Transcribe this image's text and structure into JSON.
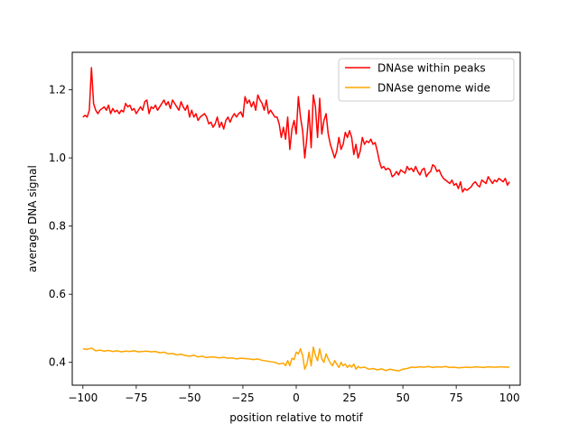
{
  "chart_data": {
    "type": "line",
    "title": "",
    "xlabel": "position relative to motif",
    "ylabel": "average DNA signal",
    "xlim": [
      -105,
      105
    ],
    "ylim": [
      0.333,
      1.31
    ],
    "xticks": [
      -100,
      -75,
      -50,
      -25,
      0,
      25,
      50,
      75,
      100
    ],
    "yticks": [
      0.4,
      0.6,
      0.8,
      1.0,
      1.2
    ],
    "xtick_labels": [
      "−100",
      "−75",
      "−50",
      "−25",
      "0",
      "25",
      "50",
      "75",
      "100"
    ],
    "ytick_labels": [
      "0.4",
      "0.6",
      "0.8",
      "1.0",
      "1.2"
    ],
    "grid": false,
    "legend_position": "top-right",
    "series": [
      {
        "name": "DNAse within peaks",
        "color": "#ff0000",
        "points": [
          [
            -100,
            1.12
          ],
          [
            -99,
            1.125
          ],
          [
            -98,
            1.12
          ],
          [
            -97,
            1.14
          ],
          [
            -96,
            1.265
          ],
          [
            -95,
            1.16
          ],
          [
            -94,
            1.14
          ],
          [
            -93,
            1.13
          ],
          [
            -92,
            1.14
          ],
          [
            -91,
            1.145
          ],
          [
            -90,
            1.15
          ],
          [
            -89,
            1.14
          ],
          [
            -88,
            1.155
          ],
          [
            -87,
            1.13
          ],
          [
            -86,
            1.145
          ],
          [
            -85,
            1.135
          ],
          [
            -84,
            1.14
          ],
          [
            -83,
            1.13
          ],
          [
            -82,
            1.14
          ],
          [
            -81,
            1.135
          ],
          [
            -80,
            1.16
          ],
          [
            -79,
            1.15
          ],
          [
            -78,
            1.155
          ],
          [
            -77,
            1.14
          ],
          [
            -76,
            1.145
          ],
          [
            -75,
            1.13
          ],
          [
            -74,
            1.14
          ],
          [
            -73,
            1.15
          ],
          [
            -72,
            1.14
          ],
          [
            -71,
            1.165
          ],
          [
            -70,
            1.17
          ],
          [
            -69,
            1.13
          ],
          [
            -68,
            1.15
          ],
          [
            -67,
            1.145
          ],
          [
            -66,
            1.155
          ],
          [
            -65,
            1.14
          ],
          [
            -64,
            1.15
          ],
          [
            -63,
            1.16
          ],
          [
            -62,
            1.17
          ],
          [
            -61,
            1.155
          ],
          [
            -60,
            1.165
          ],
          [
            -59,
            1.145
          ],
          [
            -58,
            1.17
          ],
          [
            -57,
            1.16
          ],
          [
            -56,
            1.15
          ],
          [
            -55,
            1.14
          ],
          [
            -54,
            1.165
          ],
          [
            -53,
            1.15
          ],
          [
            -52,
            1.14
          ],
          [
            -51,
            1.155
          ],
          [
            -50,
            1.12
          ],
          [
            -49,
            1.14
          ],
          [
            -48,
            1.12
          ],
          [
            -47,
            1.13
          ],
          [
            -46,
            1.11
          ],
          [
            -45,
            1.12
          ],
          [
            -44,
            1.125
          ],
          [
            -43,
            1.13
          ],
          [
            -42,
            1.12
          ],
          [
            -41,
            1.1
          ],
          [
            -40,
            1.105
          ],
          [
            -39,
            1.09
          ],
          [
            -38,
            1.1
          ],
          [
            -37,
            1.12
          ],
          [
            -36,
            1.09
          ],
          [
            -35,
            1.105
          ],
          [
            -34,
            1.085
          ],
          [
            -33,
            1.11
          ],
          [
            -32,
            1.12
          ],
          [
            -31,
            1.105
          ],
          [
            -30,
            1.12
          ],
          [
            -29,
            1.13
          ],
          [
            -28,
            1.12
          ],
          [
            -27,
            1.13
          ],
          [
            -26,
            1.135
          ],
          [
            -25,
            1.12
          ],
          [
            -24,
            1.18
          ],
          [
            -23,
            1.16
          ],
          [
            -22,
            1.17
          ],
          [
            -21,
            1.15
          ],
          [
            -20,
            1.165
          ],
          [
            -19,
            1.14
          ],
          [
            -18,
            1.185
          ],
          [
            -17,
            1.17
          ],
          [
            -16,
            1.16
          ],
          [
            -15,
            1.14
          ],
          [
            -14,
            1.17
          ],
          [
            -13,
            1.13
          ],
          [
            -12,
            1.14
          ],
          [
            -11,
            1.13
          ],
          [
            -10,
            1.12
          ],
          [
            -9,
            1.12
          ],
          [
            -8,
            1.1
          ],
          [
            -7,
            1.06
          ],
          [
            -6,
            1.09
          ],
          [
            -5,
            1.055
          ],
          [
            -4,
            1.12
          ],
          [
            -3,
            1.025
          ],
          [
            -2,
            1.085
          ],
          [
            -1,
            1.11
          ],
          [
            0,
            1.07
          ],
          [
            1,
            1.18
          ],
          [
            2,
            1.12
          ],
          [
            3,
            1.08
          ],
          [
            4,
            1.0
          ],
          [
            5,
            1.06
          ],
          [
            6,
            1.14
          ],
          [
            7,
            1.03
          ],
          [
            8,
            1.185
          ],
          [
            9,
            1.15
          ],
          [
            10,
            1.06
          ],
          [
            11,
            1.175
          ],
          [
            12,
            1.07
          ],
          [
            13,
            1.11
          ],
          [
            14,
            1.13
          ],
          [
            15,
            1.07
          ],
          [
            16,
            1.04
          ],
          [
            17,
            1.02
          ],
          [
            18,
            1.0
          ],
          [
            19,
            1.02
          ],
          [
            20,
            1.06
          ],
          [
            21,
            1.025
          ],
          [
            22,
            1.04
          ],
          [
            23,
            1.075
          ],
          [
            24,
            1.06
          ],
          [
            25,
            1.08
          ],
          [
            26,
            1.06
          ],
          [
            27,
            1.01
          ],
          [
            28,
            1.04
          ],
          [
            29,
            1.0
          ],
          [
            30,
            1.02
          ],
          [
            31,
            1.06
          ],
          [
            32,
            1.04
          ],
          [
            33,
            1.05
          ],
          [
            34,
            1.045
          ],
          [
            35,
            1.055
          ],
          [
            36,
            1.04
          ],
          [
            37,
            1.045
          ],
          [
            38,
            1.02
          ],
          [
            39,
            0.99
          ],
          [
            40,
            0.97
          ],
          [
            41,
            0.975
          ],
          [
            42,
            0.965
          ],
          [
            43,
            0.97
          ],
          [
            44,
            0.965
          ],
          [
            45,
            0.945
          ],
          [
            46,
            0.95
          ],
          [
            47,
            0.96
          ],
          [
            48,
            0.95
          ],
          [
            49,
            0.965
          ],
          [
            50,
            0.96
          ],
          [
            51,
            0.955
          ],
          [
            52,
            0.975
          ],
          [
            53,
            0.965
          ],
          [
            54,
            0.97
          ],
          [
            55,
            0.96
          ],
          [
            56,
            0.975
          ],
          [
            57,
            0.96
          ],
          [
            58,
            0.95
          ],
          [
            59,
            0.965
          ],
          [
            60,
            0.97
          ],
          [
            61,
            0.945
          ],
          [
            62,
            0.955
          ],
          [
            63,
            0.96
          ],
          [
            64,
            0.98
          ],
          [
            65,
            0.975
          ],
          [
            66,
            0.96
          ],
          [
            67,
            0.965
          ],
          [
            68,
            0.95
          ],
          [
            69,
            0.94
          ],
          [
            70,
            0.935
          ],
          [
            71,
            0.93
          ],
          [
            72,
            0.925
          ],
          [
            73,
            0.935
          ],
          [
            74,
            0.92
          ],
          [
            75,
            0.925
          ],
          [
            76,
            0.91
          ],
          [
            77,
            0.93
          ],
          [
            78,
            0.9
          ],
          [
            79,
            0.91
          ],
          [
            80,
            0.905
          ],
          [
            81,
            0.91
          ],
          [
            82,
            0.915
          ],
          [
            83,
            0.925
          ],
          [
            84,
            0.93
          ],
          [
            85,
            0.92
          ],
          [
            86,
            0.915
          ],
          [
            87,
            0.935
          ],
          [
            88,
            0.93
          ],
          [
            89,
            0.925
          ],
          [
            90,
            0.945
          ],
          [
            91,
            0.935
          ],
          [
            92,
            0.925
          ],
          [
            93,
            0.935
          ],
          [
            94,
            0.93
          ],
          [
            95,
            0.94
          ],
          [
            96,
            0.935
          ],
          [
            97,
            0.93
          ],
          [
            98,
            0.94
          ],
          [
            99,
            0.92
          ],
          [
            100,
            0.93
          ]
        ]
      },
      {
        "name": "DNAse genome wide",
        "color": "#ffa500",
        "points": [
          [
            -100,
            0.44
          ],
          [
            -98,
            0.438
          ],
          [
            -96,
            0.442
          ],
          [
            -94,
            0.434
          ],
          [
            -92,
            0.436
          ],
          [
            -90,
            0.433
          ],
          [
            -88,
            0.435
          ],
          [
            -86,
            0.432
          ],
          [
            -84,
            0.434
          ],
          [
            -82,
            0.431
          ],
          [
            -80,
            0.433
          ],
          [
            -78,
            0.432
          ],
          [
            -76,
            0.434
          ],
          [
            -74,
            0.431
          ],
          [
            -72,
            0.432
          ],
          [
            -70,
            0.433
          ],
          [
            -68,
            0.431
          ],
          [
            -66,
            0.432
          ],
          [
            -64,
            0.428
          ],
          [
            -62,
            0.43
          ],
          [
            -60,
            0.425
          ],
          [
            -58,
            0.426
          ],
          [
            -56,
            0.422
          ],
          [
            -54,
            0.424
          ],
          [
            -52,
            0.42
          ],
          [
            -50,
            0.418
          ],
          [
            -48,
            0.421
          ],
          [
            -46,
            0.416
          ],
          [
            -44,
            0.418
          ],
          [
            -42,
            0.414
          ],
          [
            -40,
            0.416
          ],
          [
            -38,
            0.415
          ],
          [
            -36,
            0.413
          ],
          [
            -34,
            0.415
          ],
          [
            -32,
            0.412
          ],
          [
            -30,
            0.413
          ],
          [
            -28,
            0.41
          ],
          [
            -26,
            0.412
          ],
          [
            -24,
            0.411
          ],
          [
            -22,
            0.41
          ],
          [
            -20,
            0.408
          ],
          [
            -18,
            0.41
          ],
          [
            -16,
            0.406
          ],
          [
            -14,
            0.404
          ],
          [
            -12,
            0.402
          ],
          [
            -10,
            0.4
          ],
          [
            -8,
            0.395
          ],
          [
            -6,
            0.398
          ],
          [
            -5,
            0.39
          ],
          [
            -4,
            0.405
          ],
          [
            -3,
            0.39
          ],
          [
            -2,
            0.412
          ],
          [
            -1,
            0.408
          ],
          [
            0,
            0.43
          ],
          [
            1,
            0.425
          ],
          [
            2,
            0.44
          ],
          [
            3,
            0.42
          ],
          [
            4,
            0.38
          ],
          [
            5,
            0.395
          ],
          [
            6,
            0.43
          ],
          [
            7,
            0.39
          ],
          [
            8,
            0.445
          ],
          [
            9,
            0.42
          ],
          [
            10,
            0.405
          ],
          [
            11,
            0.44
          ],
          [
            12,
            0.41
          ],
          [
            13,
            0.4
          ],
          [
            14,
            0.425
          ],
          [
            15,
            0.41
          ],
          [
            16,
            0.398
          ],
          [
            17,
            0.39
          ],
          [
            18,
            0.405
          ],
          [
            19,
            0.395
          ],
          [
            20,
            0.385
          ],
          [
            21,
            0.4
          ],
          [
            22,
            0.39
          ],
          [
            23,
            0.395
          ],
          [
            24,
            0.385
          ],
          [
            25,
            0.392
          ],
          [
            26,
            0.386
          ],
          [
            27,
            0.395
          ],
          [
            28,
            0.38
          ],
          [
            29,
            0.388
          ],
          [
            30,
            0.384
          ],
          [
            32,
            0.386
          ],
          [
            34,
            0.38
          ],
          [
            36,
            0.382
          ],
          [
            38,
            0.378
          ],
          [
            40,
            0.381
          ],
          [
            42,
            0.376
          ],
          [
            44,
            0.38
          ],
          [
            46,
            0.377
          ],
          [
            48,
            0.375
          ],
          [
            50,
            0.38
          ],
          [
            52,
            0.382
          ],
          [
            54,
            0.386
          ],
          [
            56,
            0.385
          ],
          [
            58,
            0.387
          ],
          [
            60,
            0.386
          ],
          [
            62,
            0.388
          ],
          [
            64,
            0.385
          ],
          [
            66,
            0.387
          ],
          [
            68,
            0.386
          ],
          [
            70,
            0.388
          ],
          [
            72,
            0.385
          ],
          [
            74,
            0.386
          ],
          [
            76,
            0.384
          ],
          [
            78,
            0.385
          ],
          [
            80,
            0.386
          ],
          [
            82,
            0.385
          ],
          [
            84,
            0.387
          ],
          [
            86,
            0.386
          ],
          [
            88,
            0.385
          ],
          [
            90,
            0.387
          ],
          [
            92,
            0.386
          ],
          [
            94,
            0.386
          ],
          [
            96,
            0.387
          ],
          [
            98,
            0.386
          ],
          [
            100,
            0.386
          ]
        ]
      }
    ]
  }
}
